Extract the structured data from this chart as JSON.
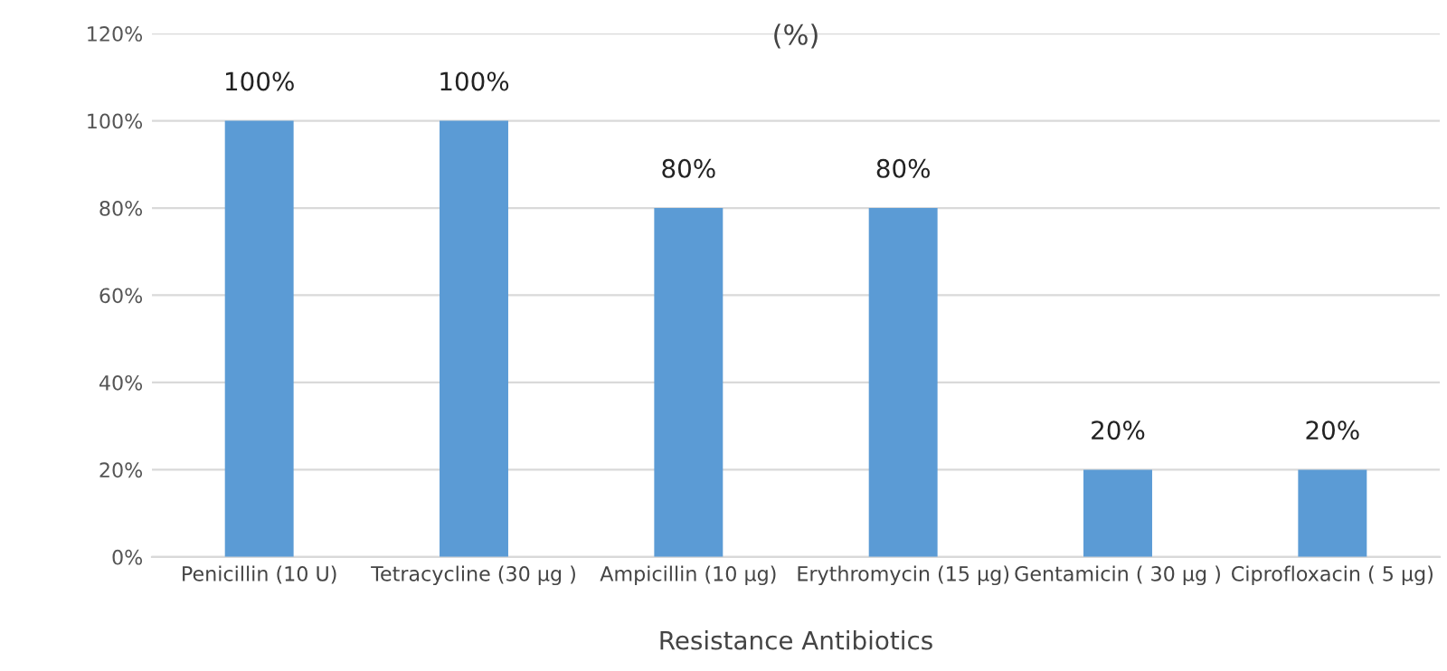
{
  "chart_data": {
    "type": "bar",
    "title": "(%)",
    "xlabel": "Resistance Antibiotics",
    "categories": [
      "Penicillin (10 U)",
      "Tetracycline (30 µg )",
      "Ampicillin (10 µg)",
      "Erythromycin (15 µg)",
      "Gentamicin ( 30 µg )",
      "Ciprofloxacin ( 5 µg)"
    ],
    "values": [
      100,
      100,
      80,
      80,
      20,
      20
    ],
    "value_labels": [
      "100%",
      "100%",
      "80%",
      "80%",
      "20%",
      "20%"
    ],
    "color": "#5b9bd5",
    "ylim": [
      0,
      120
    ],
    "yticks": [
      {
        "value": 0,
        "label": "0%"
      },
      {
        "value": 20,
        "label": "20%"
      },
      {
        "value": 40,
        "label": "40%"
      },
      {
        "value": 60,
        "label": "60%"
      },
      {
        "value": 80,
        "label": "80%"
      },
      {
        "value": 100,
        "label": "100%"
      },
      {
        "value": 120,
        "label": "120%"
      }
    ],
    "grid": "y",
    "legend": false
  }
}
